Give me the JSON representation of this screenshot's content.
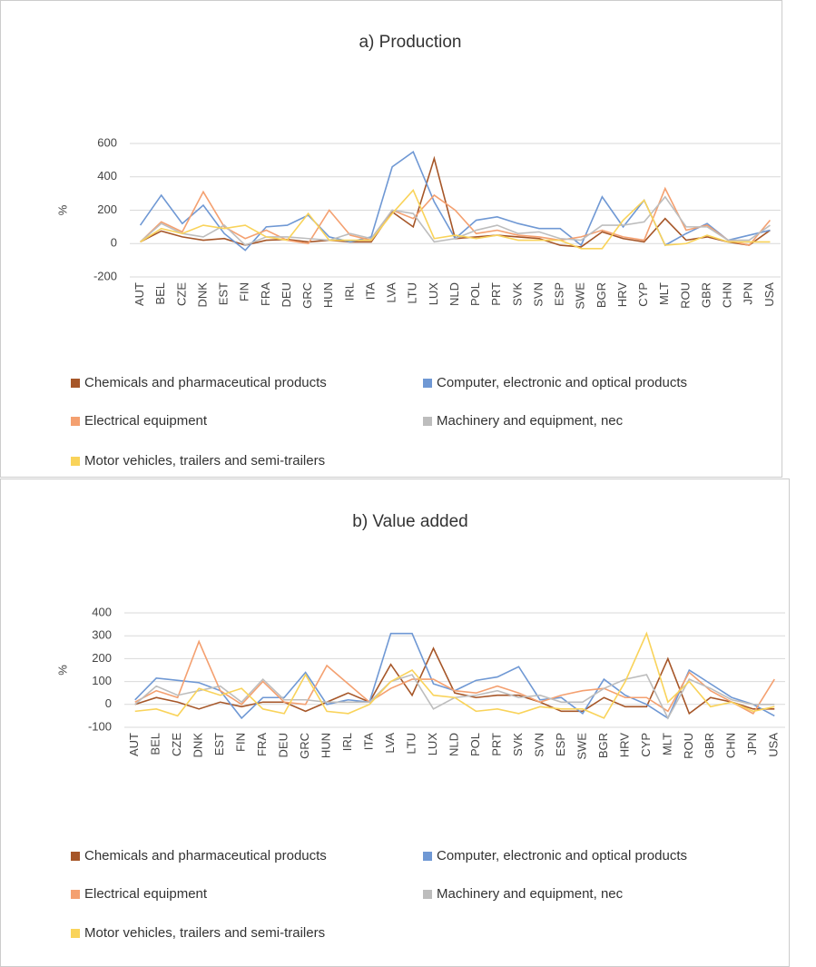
{
  "chart_data": [
    {
      "type": "line",
      "title": "a) Production",
      "ylabel": "%",
      "categories": [
        "AUT",
        "BEL",
        "CZE",
        "DNK",
        "EST",
        "FIN",
        "FRA",
        "DEU",
        "GRC",
        "HUN",
        "IRL",
        "ITA",
        "LVA",
        "LTU",
        "LUX",
        "NLD",
        "POL",
        "PRT",
        "SVK",
        "SVN",
        "ESP",
        "SWE",
        "BGR",
        "HRV",
        "CYP",
        "MLT",
        "ROU",
        "GBR",
        "CHN",
        "JPN",
        "USA"
      ],
      "ylim": [
        -200,
        600
      ],
      "yticks": [
        -200,
        0,
        200,
        400,
        600
      ],
      "grid": true,
      "series": [
        {
          "name": "Chemicals and pharmaceutical products",
          "color": "#a65628",
          "values": [
            10,
            75,
            40,
            20,
            30,
            -10,
            20,
            25,
            10,
            20,
            10,
            10,
            190,
            100,
            510,
            30,
            40,
            50,
            40,
            30,
            -10,
            -20,
            70,
            30,
            10,
            150,
            20,
            40,
            10,
            -10,
            80
          ]
        },
        {
          "name": "Computer, electronic and optical products",
          "color": "#6f98d4",
          "values": [
            110,
            290,
            120,
            230,
            60,
            -40,
            100,
            110,
            170,
            40,
            10,
            40,
            460,
            550,
            250,
            30,
            140,
            160,
            120,
            90,
            90,
            -10,
            280,
            100,
            260,
            -10,
            60,
            120,
            20,
            50,
            80
          ]
        },
        {
          "name": "Electrical equipment",
          "color": "#f4a070",
          "values": [
            10,
            130,
            70,
            310,
            100,
            30,
            80,
            20,
            0,
            200,
            50,
            20,
            200,
            150,
            290,
            200,
            60,
            80,
            50,
            40,
            20,
            40,
            80,
            40,
            20,
            330,
            80,
            110,
            20,
            -10,
            140
          ]
        },
        {
          "name": "Machinery and equipment, nec",
          "color": "#bdbdbd",
          "values": [
            10,
            120,
            60,
            40,
            110,
            -10,
            40,
            40,
            30,
            20,
            60,
            30,
            200,
            180,
            10,
            30,
            80,
            110,
            60,
            70,
            30,
            20,
            110,
            110,
            130,
            280,
            100,
            100,
            20,
            20,
            110
          ]
        },
        {
          "name": "Motor vehicles, trailers and semi-trailers",
          "color": "#f9d35a",
          "values": [
            10,
            90,
            60,
            110,
            90,
            110,
            40,
            20,
            180,
            20,
            20,
            20,
            180,
            320,
            30,
            50,
            30,
            50,
            20,
            20,
            20,
            -30,
            -30,
            140,
            260,
            -10,
            0,
            50,
            10,
            10,
            10
          ]
        }
      ]
    },
    {
      "type": "line",
      "title": "b) Value added",
      "ylabel": "%",
      "categories": [
        "AUT",
        "BEL",
        "CZE",
        "DNK",
        "EST",
        "FIN",
        "FRA",
        "DEU",
        "GRC",
        "HUN",
        "IRL",
        "ITA",
        "LVA",
        "LTU",
        "LUX",
        "NLD",
        "POL",
        "PRT",
        "SVK",
        "SVN",
        "ESP",
        "SWE",
        "BGR",
        "HRV",
        "CYP",
        "MLT",
        "ROU",
        "GBR",
        "CHN",
        "JPN",
        "USA"
      ],
      "ylim": [
        -100,
        400
      ],
      "yticks": [
        -100,
        0,
        100,
        200,
        300,
        400
      ],
      "grid": true,
      "series": [
        {
          "name": "Chemicals and pharmaceutical products",
          "color": "#a65628",
          "values": [
            0,
            30,
            10,
            -20,
            10,
            -10,
            10,
            10,
            -30,
            10,
            50,
            10,
            175,
            40,
            245,
            50,
            30,
            40,
            40,
            10,
            -30,
            -30,
            30,
            -10,
            -10,
            200,
            -40,
            30,
            10,
            -20,
            -20
          ]
        },
        {
          "name": "Computer, electronic and optical products",
          "color": "#6f98d4",
          "values": [
            20,
            115,
            105,
            95,
            60,
            -60,
            30,
            30,
            140,
            0,
            20,
            10,
            310,
            310,
            90,
            60,
            105,
            120,
            165,
            20,
            30,
            -40,
            110,
            40,
            0,
            -60,
            150,
            90,
            30,
            0,
            -50
          ]
        },
        {
          "name": "Electrical equipment",
          "color": "#f4a070",
          "values": [
            10,
            60,
            30,
            275,
            60,
            0,
            100,
            10,
            0,
            170,
            90,
            10,
            70,
            110,
            110,
            60,
            50,
            80,
            50,
            10,
            40,
            60,
            70,
            30,
            30,
            -30,
            140,
            60,
            10,
            -40,
            110
          ]
        },
        {
          "name": "Machinery and equipment, nec",
          "color": "#bdbdbd",
          "values": [
            0,
            80,
            40,
            60,
            80,
            10,
            110,
            20,
            20,
            10,
            10,
            10,
            100,
            130,
            -20,
            30,
            40,
            60,
            30,
            40,
            10,
            10,
            70,
            110,
            130,
            -60,
            110,
            70,
            20,
            0,
            0
          ]
        },
        {
          "name": "Motor vehicles, trailers and semi-trailers",
          "color": "#f9d35a",
          "values": [
            -30,
            -20,
            -50,
            70,
            40,
            70,
            -20,
            -40,
            130,
            -30,
            -40,
            0,
            100,
            150,
            40,
            30,
            -30,
            -20,
            -40,
            -10,
            -20,
            -20,
            -60,
            100,
            310,
            10,
            100,
            -10,
            10,
            -30,
            -10
          ]
        }
      ]
    }
  ]
}
